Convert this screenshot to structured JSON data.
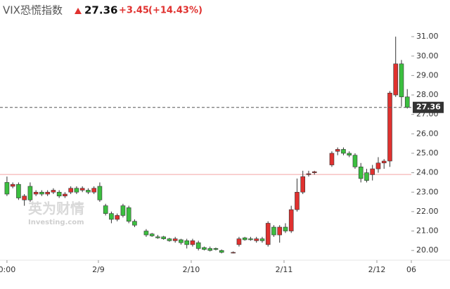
{
  "chart_data": {
    "type": "candlestick",
    "title": "VIX恐慌指数",
    "price": 27.36,
    "change": "+3.45",
    "change_pct": "(+14.43%)",
    "watermark": [
      "英为财情",
      "Investing.com"
    ],
    "up_color": "#e0312f",
    "down_color": "#3bbf3f",
    "prev_close": 23.91,
    "x": [
      0,
      1,
      2,
      3,
      4,
      5,
      6,
      7,
      8,
      9,
      10,
      11,
      12,
      13,
      14,
      15,
      16,
      17,
      18,
      19,
      20,
      21,
      22,
      24,
      25,
      26,
      27,
      28,
      29,
      30,
      31,
      32,
      33,
      34,
      35,
      36,
      37,
      39,
      40,
      41,
      42,
      43,
      44,
      45,
      46,
      47,
      48,
      49,
      50,
      51,
      52,
      53,
      56,
      57,
      58,
      59,
      60,
      61,
      62,
      63,
      64,
      65,
      66,
      67,
      68,
      69
    ],
    "open": [
      23.5,
      23.3,
      23.4,
      22.6,
      23.3,
      22.9,
      23.0,
      22.9,
      23.0,
      23.0,
      22.8,
      23.0,
      23.2,
      23.1,
      23.1,
      23.0,
      23.3,
      22.3,
      21.9,
      21.6,
      22.3,
      22.2,
      21.5,
      21.0,
      20.85,
      20.7,
      20.7,
      20.6,
      20.5,
      20.55,
      20.5,
      20.3,
      20.4,
      20.15,
      20.1,
      20.1,
      20.0,
      19.9,
      20.3,
      20.65,
      20.6,
      20.5,
      20.6,
      20.3,
      21.2,
      20.8,
      21.2,
      21.0,
      22.1,
      23.0,
      23.9,
      24.0,
      24.4,
      25.1,
      25.2,
      25.0,
      24.9,
      24.3,
      24.0,
      23.9,
      24.2,
      24.5,
      24.6,
      28.0,
      29.6,
      27.9
    ],
    "high": [
      23.8,
      23.5,
      23.5,
      22.9,
      23.5,
      23.1,
      23.1,
      23.1,
      23.2,
      23.1,
      23.0,
      23.3,
      23.3,
      23.3,
      23.2,
      23.3,
      23.5,
      22.4,
      22.0,
      21.9,
      22.4,
      22.3,
      21.6,
      21.1,
      20.9,
      20.8,
      20.75,
      20.65,
      20.7,
      20.6,
      20.6,
      20.6,
      20.5,
      20.2,
      20.2,
      20.15,
      20.05,
      19.95,
      20.7,
      20.7,
      20.7,
      20.7,
      20.7,
      21.5,
      21.3,
      21.3,
      21.4,
      22.3,
      23.7,
      24.1,
      24.1,
      24.1,
      25.1,
      25.3,
      25.3,
      25.1,
      25.0,
      24.5,
      24.2,
      24.4,
      24.8,
      24.7,
      28.2,
      31.0,
      29.8,
      28.3
    ],
    "low": [
      22.8,
      23.2,
      22.6,
      22.3,
      22.5,
      22.8,
      22.8,
      22.8,
      22.9,
      22.7,
      22.7,
      22.9,
      22.9,
      23.0,
      22.9,
      22.9,
      22.5,
      21.8,
      21.4,
      21.5,
      21.7,
      21.4,
      21.2,
      20.7,
      20.7,
      20.6,
      20.55,
      20.45,
      20.4,
      20.3,
      20.1,
      20.2,
      20.0,
      20.0,
      19.95,
      20.0,
      19.85,
      19.85,
      20.2,
      20.5,
      20.5,
      20.4,
      20.4,
      20.2,
      20.7,
      20.4,
      20.9,
      20.9,
      22.0,
      22.9,
      23.8,
      23.9,
      24.3,
      24.9,
      24.9,
      24.8,
      24.2,
      23.5,
      23.5,
      23.6,
      24.0,
      24.2,
      24.3,
      27.9,
      27.4,
      27.3
    ],
    "close": [
      22.9,
      23.4,
      22.7,
      22.8,
      22.6,
      23.0,
      22.9,
      23.0,
      23.1,
      22.8,
      22.9,
      23.2,
      23.0,
      23.2,
      23.0,
      23.2,
      22.6,
      21.9,
      21.6,
      21.8,
      21.8,
      21.5,
      21.3,
      20.8,
      20.75,
      20.65,
      20.6,
      20.5,
      20.6,
      20.4,
      20.3,
      20.5,
      20.1,
      20.05,
      20.0,
      20.05,
      19.9,
      19.9,
      20.6,
      20.55,
      20.55,
      20.6,
      20.5,
      21.4,
      20.8,
      21.2,
      21.0,
      22.1,
      23.0,
      23.8,
      23.95,
      24.05,
      25.0,
      25.2,
      25.0,
      24.9,
      24.3,
      23.7,
      23.6,
      24.2,
      24.5,
      24.6,
      28.1,
      29.6,
      27.9,
      27.36
    ],
    "xlim": [
      -1.2,
      69.7
    ],
    "xticks": [
      {
        "value": 0,
        "label": "0:00"
      },
      {
        "value": 15.76,
        "label": "2/9"
      },
      {
        "value": 31.76,
        "label": "2/10"
      },
      {
        "value": 47.76,
        "label": "2/11"
      },
      {
        "value": 63.76,
        "label": "2/12"
      },
      {
        "value": 69.7,
        "label": "06"
      }
    ],
    "ylim": [
      19.5,
      31.8
    ],
    "yticks": [
      {
        "value": 20,
        "label": "20.00"
      },
      {
        "value": 21,
        "label": "21.00"
      },
      {
        "value": 22,
        "label": "22.00"
      },
      {
        "value": 23,
        "label": "23.00"
      },
      {
        "value": 24,
        "label": "24.00"
      },
      {
        "value": 25,
        "label": "25.00"
      },
      {
        "value": 26,
        "label": "26.00"
      },
      {
        "value": 27,
        "label": "27.00"
      },
      {
        "value": 28,
        "label": "28.00"
      },
      {
        "value": 29,
        "label": "29.00"
      },
      {
        "value": 30,
        "label": "30.00"
      },
      {
        "value": 31,
        "label": "31.00"
      }
    ]
  }
}
